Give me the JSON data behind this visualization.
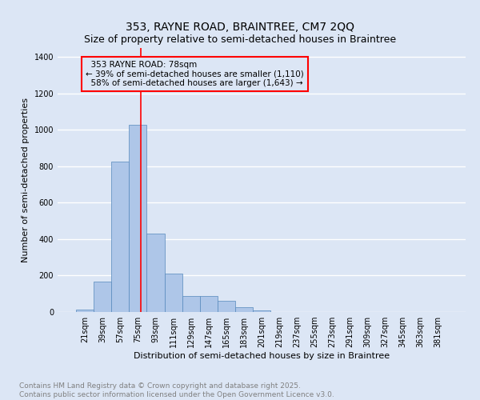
{
  "title": "353, RAYNE ROAD, BRAINTREE, CM7 2QQ",
  "subtitle": "Size of property relative to semi-detached houses in Braintree",
  "xlabel": "Distribution of semi-detached houses by size in Braintree",
  "ylabel": "Number of semi-detached properties",
  "bar_labels": [
    "21sqm",
    "39sqm",
    "57sqm",
    "75sqm",
    "93sqm",
    "111sqm",
    "129sqm",
    "147sqm",
    "165sqm",
    "183sqm",
    "201sqm",
    "219sqm",
    "237sqm",
    "255sqm",
    "273sqm",
    "291sqm",
    "309sqm",
    "327sqm",
    "345sqm",
    "363sqm",
    "381sqm"
  ],
  "bar_values": [
    15,
    165,
    825,
    1030,
    430,
    210,
    90,
    90,
    60,
    25,
    10,
    0,
    0,
    0,
    0,
    0,
    0,
    0,
    0,
    0,
    0
  ],
  "bar_color": "#aec6e8",
  "bar_edgecolor": "#5588bb",
  "bar_width": 1.0,
  "ylim": [
    0,
    1450
  ],
  "yticks": [
    0,
    200,
    400,
    600,
    800,
    1000,
    1200,
    1400
  ],
  "property_label": "353 RAYNE ROAD: 78sqm",
  "pct_smaller": 39,
  "pct_larger": 58,
  "n_smaller": 1110,
  "n_larger": 1643,
  "footer_line1": "Contains HM Land Registry data © Crown copyright and database right 2025.",
  "footer_line2": "Contains public sector information licensed under the Open Government Licence v3.0.",
  "background_color": "#dce6f5",
  "grid_color": "#ffffff",
  "title_fontsize": 10,
  "axis_label_fontsize": 8,
  "tick_fontsize": 7,
  "footer_fontsize": 6.5,
  "annotation_fontsize": 7.5
}
